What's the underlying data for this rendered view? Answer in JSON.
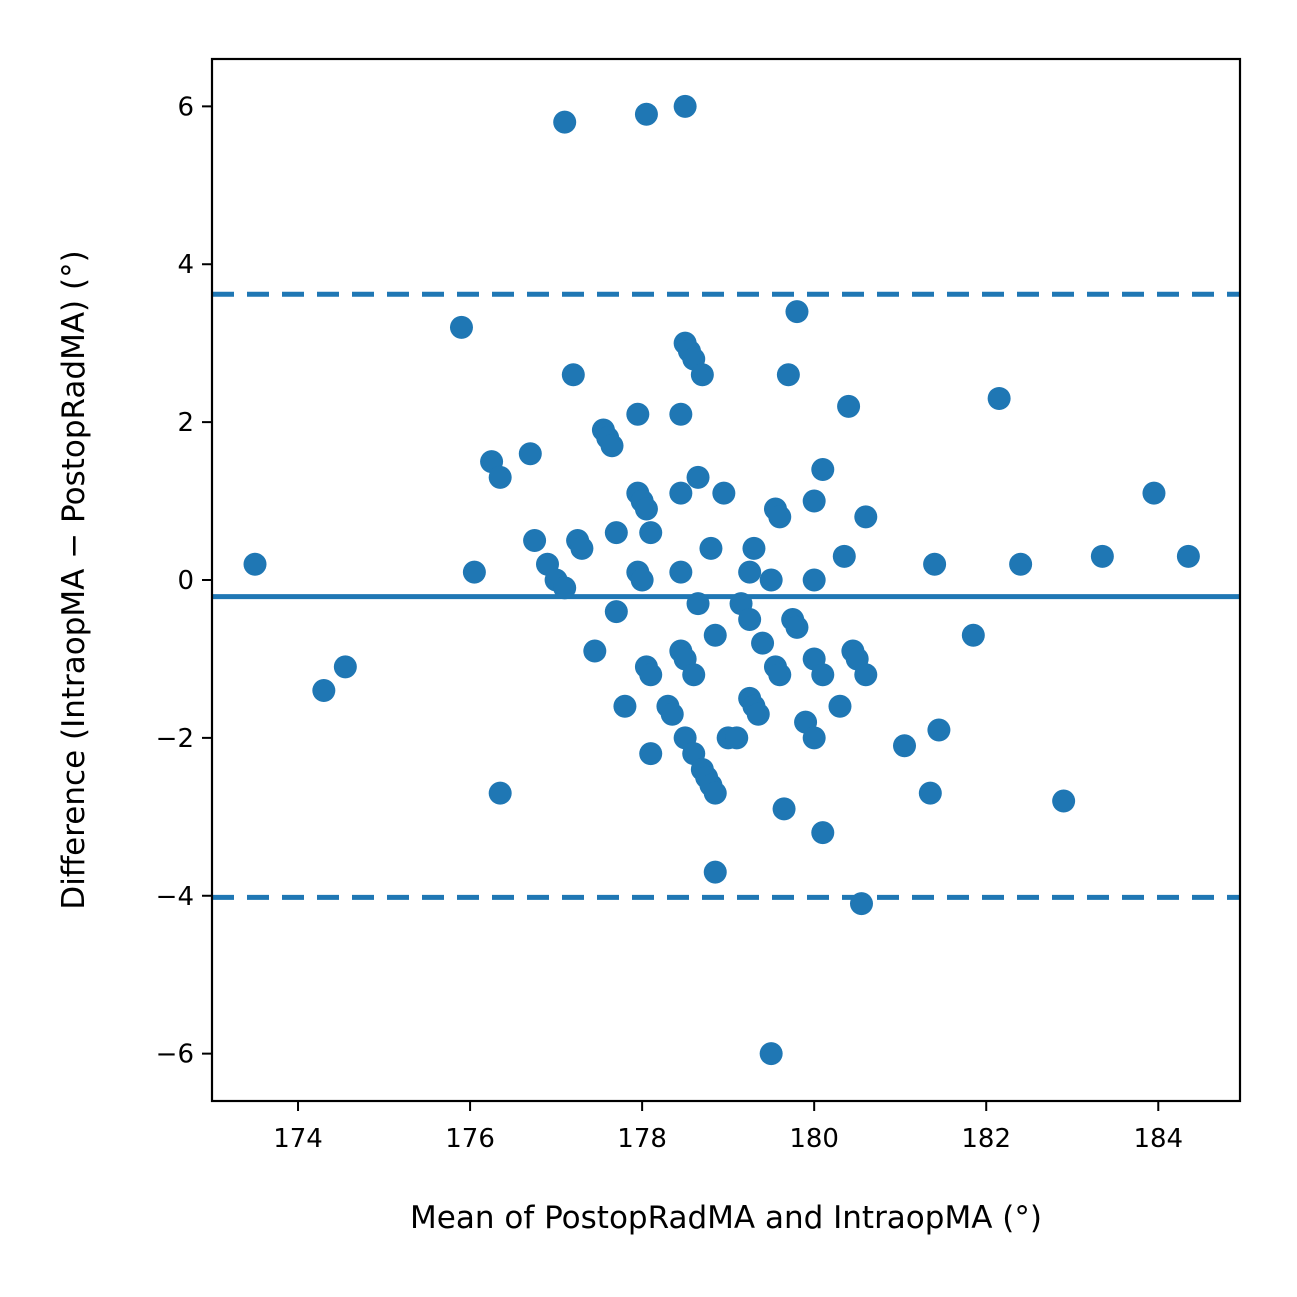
{
  "chart_data": {
    "type": "scatter",
    "title": "",
    "xlabel": "Mean of PostopRadMA and IntraopMA (°)",
    "ylabel": "Difference (IntraopMA − PostopRadMA) (°)",
    "xlim": [
      173.0,
      184.95
    ],
    "ylim": [
      -6.6,
      6.6
    ],
    "x_ticks": [
      174,
      176,
      178,
      180,
      182,
      184
    ],
    "x_tick_labels": [
      "174",
      "176",
      "178",
      "180",
      "182",
      "184"
    ],
    "y_ticks": [
      -6,
      -4,
      -2,
      0,
      2,
      4,
      6
    ],
    "y_tick_labels": [
      "−6",
      "−4",
      "−2",
      "0",
      "2",
      "4",
      "6"
    ],
    "grid": false,
    "color": "#1f77b4",
    "reference_lines": {
      "mean_difference": -0.21,
      "upper_limit": 3.62,
      "lower_limit": -4.02
    },
    "points": [
      [
        173.5,
        0.2
      ],
      [
        174.3,
        -1.4
      ],
      [
        174.55,
        -1.1
      ],
      [
        175.9,
        3.2
      ],
      [
        176.05,
        0.1
      ],
      [
        176.25,
        1.5
      ],
      [
        176.35,
        1.3
      ],
      [
        176.35,
        -2.7
      ],
      [
        176.7,
        1.6
      ],
      [
        176.75,
        0.5
      ],
      [
        176.9,
        0.2
      ],
      [
        177.0,
        0.0
      ],
      [
        177.1,
        -0.1
      ],
      [
        177.1,
        5.8
      ],
      [
        177.2,
        2.6
      ],
      [
        177.25,
        0.5
      ],
      [
        177.3,
        0.4
      ],
      [
        177.45,
        -0.9
      ],
      [
        177.55,
        1.9
      ],
      [
        177.6,
        1.8
      ],
      [
        177.65,
        1.7
      ],
      [
        177.7,
        0.6
      ],
      [
        177.7,
        -0.4
      ],
      [
        177.8,
        -1.6
      ],
      [
        177.95,
        2.1
      ],
      [
        177.95,
        1.1
      ],
      [
        177.95,
        0.1
      ],
      [
        178.0,
        1.0
      ],
      [
        178.0,
        0.0
      ],
      [
        178.05,
        0.9
      ],
      [
        178.05,
        -1.1
      ],
      [
        178.05,
        5.9
      ],
      [
        178.1,
        0.6
      ],
      [
        178.1,
        -1.2
      ],
      [
        178.1,
        -2.2
      ],
      [
        178.3,
        -1.6
      ],
      [
        178.35,
        -1.7
      ],
      [
        178.45,
        2.1
      ],
      [
        178.45,
        1.1
      ],
      [
        178.45,
        0.1
      ],
      [
        178.45,
        -0.9
      ],
      [
        178.5,
        3.0
      ],
      [
        178.5,
        -1.0
      ],
      [
        178.5,
        -2.0
      ],
      [
        178.5,
        6.0
      ],
      [
        178.55,
        2.9
      ],
      [
        178.6,
        2.8
      ],
      [
        178.6,
        -1.2
      ],
      [
        178.6,
        -2.2
      ],
      [
        178.65,
        1.3
      ],
      [
        178.65,
        -0.3
      ],
      [
        178.7,
        2.6
      ],
      [
        178.7,
        -2.4
      ],
      [
        178.75,
        -2.5
      ],
      [
        178.8,
        0.4
      ],
      [
        178.8,
        -2.6
      ],
      [
        178.85,
        -0.7
      ],
      [
        178.85,
        -2.7
      ],
      [
        178.85,
        -3.7
      ],
      [
        178.95,
        1.1
      ],
      [
        179.0,
        -2.0
      ],
      [
        179.1,
        -2.0
      ],
      [
        179.15,
        -0.3
      ],
      [
        179.25,
        0.1
      ],
      [
        179.25,
        -0.5
      ],
      [
        179.25,
        -1.5
      ],
      [
        179.3,
        0.4
      ],
      [
        179.3,
        -1.6
      ],
      [
        179.35,
        -1.7
      ],
      [
        179.4,
        -0.8
      ],
      [
        179.5,
        0.0
      ],
      [
        179.5,
        -6.0
      ],
      [
        179.55,
        0.9
      ],
      [
        179.55,
        -1.1
      ],
      [
        179.6,
        0.8
      ],
      [
        179.6,
        -1.2
      ],
      [
        179.65,
        -2.9
      ],
      [
        179.7,
        2.6
      ],
      [
        179.75,
        -0.5
      ],
      [
        179.8,
        3.4
      ],
      [
        179.8,
        -0.6
      ],
      [
        179.9,
        -1.8
      ],
      [
        180.0,
        1.0
      ],
      [
        180.0,
        0.0
      ],
      [
        180.0,
        -1.0
      ],
      [
        180.0,
        -2.0
      ],
      [
        180.1,
        1.4
      ],
      [
        180.1,
        -1.2
      ],
      [
        180.1,
        -3.2
      ],
      [
        180.3,
        -1.6
      ],
      [
        180.35,
        0.3
      ],
      [
        180.4,
        2.2
      ],
      [
        180.45,
        -0.9
      ],
      [
        180.5,
        -1.0
      ],
      [
        180.55,
        -4.1
      ],
      [
        180.6,
        0.8
      ],
      [
        180.6,
        -1.2
      ],
      [
        181.05,
        -2.1
      ],
      [
        181.35,
        -2.7
      ],
      [
        181.4,
        0.2
      ],
      [
        181.45,
        -1.9
      ],
      [
        181.85,
        -0.7
      ],
      [
        182.15,
        2.3
      ],
      [
        182.4,
        0.2
      ],
      [
        182.9,
        -2.8
      ],
      [
        183.35,
        0.3
      ],
      [
        183.95,
        1.1
      ],
      [
        184.35,
        0.3
      ]
    ]
  }
}
